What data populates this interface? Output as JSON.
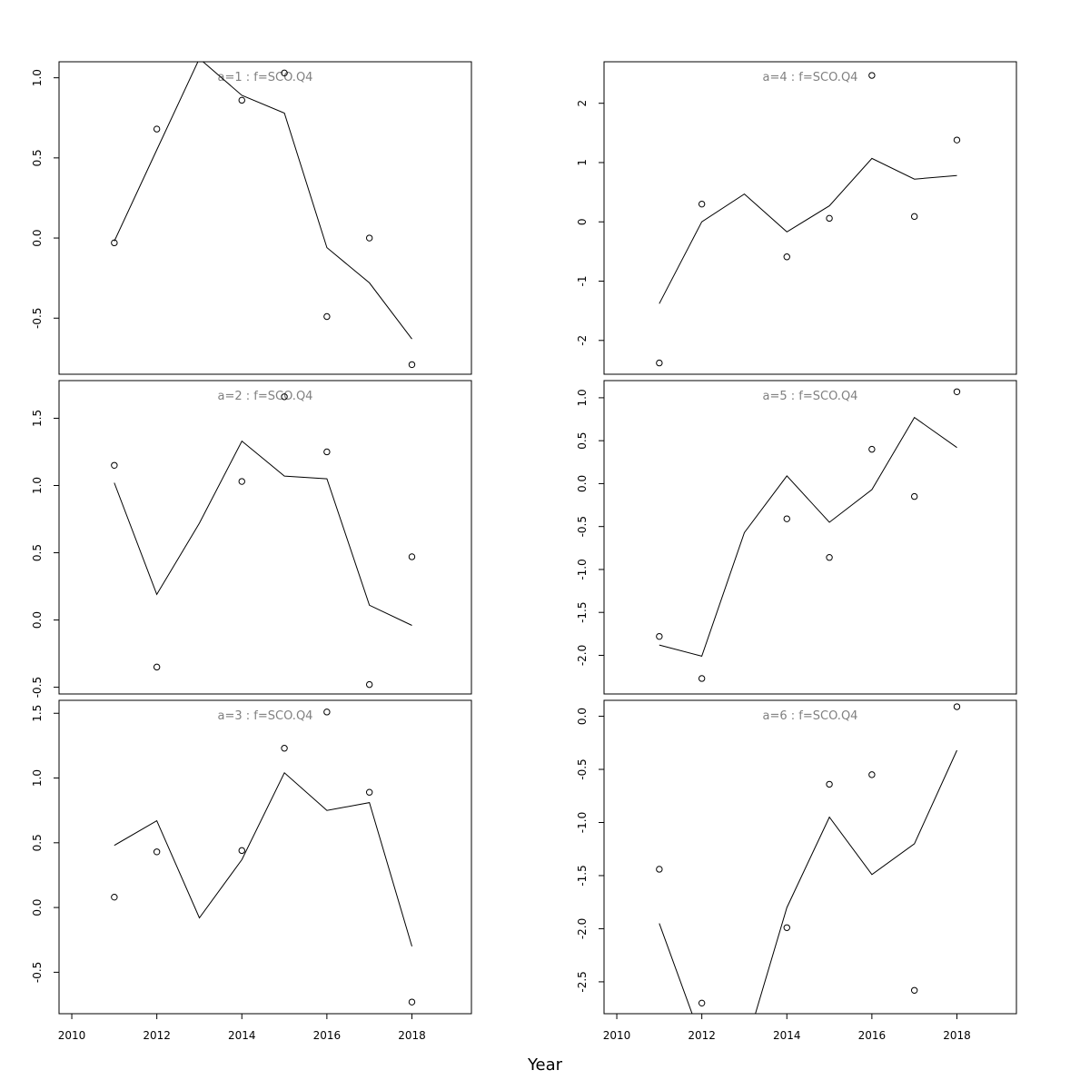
{
  "chart_data": {
    "type": "line",
    "xlabel": "Year",
    "layout": "3 rows x 2 columns, panels fill column-wise",
    "x_ticks": [
      2010,
      2012,
      2014,
      2016,
      2018
    ],
    "xlim": [
      2009.7,
      2019.4
    ],
    "line_style": "solid black line = fitted",
    "point_style": "open circles = observed",
    "title_color": "#808080",
    "panels": [
      {
        "title": "a=1 : f=SCO.Q4",
        "ylim": [
          -0.85,
          1.1
        ],
        "y_ticks": [
          -0.5,
          0.0,
          0.5,
          1.0
        ],
        "y_tick_labels": [
          "-0.5",
          "0.0",
          "0.5",
          "1.0"
        ],
        "line": {
          "x": [
            2011,
            2012,
            2013,
            2014,
            2015,
            2016,
            2017,
            2018
          ],
          "y": [
            -0.02,
            0.55,
            1.12,
            0.89,
            0.78,
            -0.06,
            -0.28,
            -0.63
          ]
        },
        "points": {
          "x": [
            2011,
            2012,
            2014,
            2015,
            2016,
            2017,
            2018
          ],
          "y": [
            -0.03,
            0.68,
            0.86,
            1.03,
            -0.49,
            0.0,
            -0.79
          ]
        }
      },
      {
        "title": "a=2 : f=SCO.Q4",
        "ylim": [
          -0.55,
          1.78
        ],
        "y_ticks": [
          -0.5,
          0.0,
          0.5,
          1.0,
          1.5
        ],
        "y_tick_labels": [
          "-0.5",
          "0.0",
          "0.5",
          "1.0",
          "1.5"
        ],
        "line": {
          "x": [
            2011,
            2012,
            2013,
            2014,
            2015,
            2016,
            2017,
            2018
          ],
          "y": [
            1.02,
            0.19,
            0.72,
            1.33,
            1.07,
            1.05,
            0.11,
            -0.04
          ]
        },
        "points": {
          "x": [
            2011,
            2012,
            2014,
            2015,
            2016,
            2017,
            2018
          ],
          "y": [
            1.15,
            -0.35,
            1.03,
            1.66,
            1.25,
            -0.48,
            0.47
          ]
        }
      },
      {
        "title": "a=3 : f=SCO.Q4",
        "ylim": [
          -0.82,
          1.6
        ],
        "y_ticks": [
          -0.5,
          0.0,
          0.5,
          1.0,
          1.5
        ],
        "y_tick_labels": [
          "-0.5",
          "0.0",
          "0.5",
          "1.0",
          "1.5"
        ],
        "line": {
          "x": [
            2011,
            2012,
            2013,
            2014,
            2015,
            2016,
            2017,
            2018
          ],
          "y": [
            0.48,
            0.67,
            -0.08,
            0.37,
            1.04,
            0.75,
            0.81,
            -0.3
          ]
        },
        "points": {
          "x": [
            2011,
            2012,
            2014,
            2015,
            2016,
            2017,
            2018
          ],
          "y": [
            0.08,
            0.43,
            0.44,
            1.23,
            1.51,
            0.89,
            -0.73
          ]
        }
      },
      {
        "title": "a=4 : f=SCO.Q4",
        "ylim": [
          -2.57,
          2.7
        ],
        "y_ticks": [
          -2,
          -1,
          0,
          1,
          2
        ],
        "y_tick_labels": [
          "-2",
          "-1",
          "0",
          "1",
          "2"
        ],
        "line": {
          "x": [
            2011,
            2012,
            2013,
            2014,
            2015,
            2016,
            2017,
            2018
          ],
          "y": [
            -1.38,
            0.0,
            0.47,
            -0.17,
            0.27,
            1.07,
            0.72,
            0.78
          ]
        },
        "points": {
          "x": [
            2011,
            2012,
            2014,
            2015,
            2016,
            2017,
            2018
          ],
          "y": [
            -2.38,
            0.3,
            -0.59,
            0.06,
            2.47,
            0.09,
            1.38
          ]
        }
      },
      {
        "title": "a=5 : f=SCO.Q4",
        "ylim": [
          -2.45,
          1.2
        ],
        "y_ticks": [
          -2.0,
          -1.5,
          -1.0,
          -0.5,
          0.0,
          0.5,
          1.0
        ],
        "y_tick_labels": [
          "-2.0",
          "-1.5",
          "-1.0",
          "-0.5",
          "0.0",
          "0.5",
          "1.0"
        ],
        "line": {
          "x": [
            2011,
            2012,
            2013,
            2014,
            2015,
            2016,
            2017,
            2018
          ],
          "y": [
            -1.88,
            -2.01,
            -0.57,
            0.09,
            -0.45,
            -0.07,
            0.77,
            0.42
          ]
        },
        "points": {
          "x": [
            2011,
            2012,
            2014,
            2015,
            2016,
            2017,
            2018
          ],
          "y": [
            -1.78,
            -2.27,
            -0.41,
            -0.86,
            0.4,
            -0.15,
            1.07
          ]
        }
      },
      {
        "title": "a=6 : f=SCO.Q4",
        "ylim": [
          -2.8,
          0.15
        ],
        "y_ticks": [
          -2.5,
          -2.0,
          -1.5,
          -1.0,
          -0.5,
          0.0
        ],
        "y_tick_labels": [
          "-2.5",
          "-2.0",
          "-1.5",
          "-1.0",
          "-0.5",
          "0.0"
        ],
        "line": {
          "x": [
            2011,
            2012,
            2013,
            2014,
            2015,
            2016,
            2017,
            2018
          ],
          "y": [
            -1.95,
            -3.05,
            -3.15,
            -1.8,
            -0.95,
            -1.49,
            -1.2,
            -0.32
          ]
        },
        "points": {
          "x": [
            2011,
            2012,
            2014,
            2015,
            2016,
            2017,
            2018
          ],
          "y": [
            -1.44,
            -2.7,
            -1.99,
            -0.64,
            -0.55,
            -2.58,
            0.09
          ]
        }
      }
    ]
  }
}
